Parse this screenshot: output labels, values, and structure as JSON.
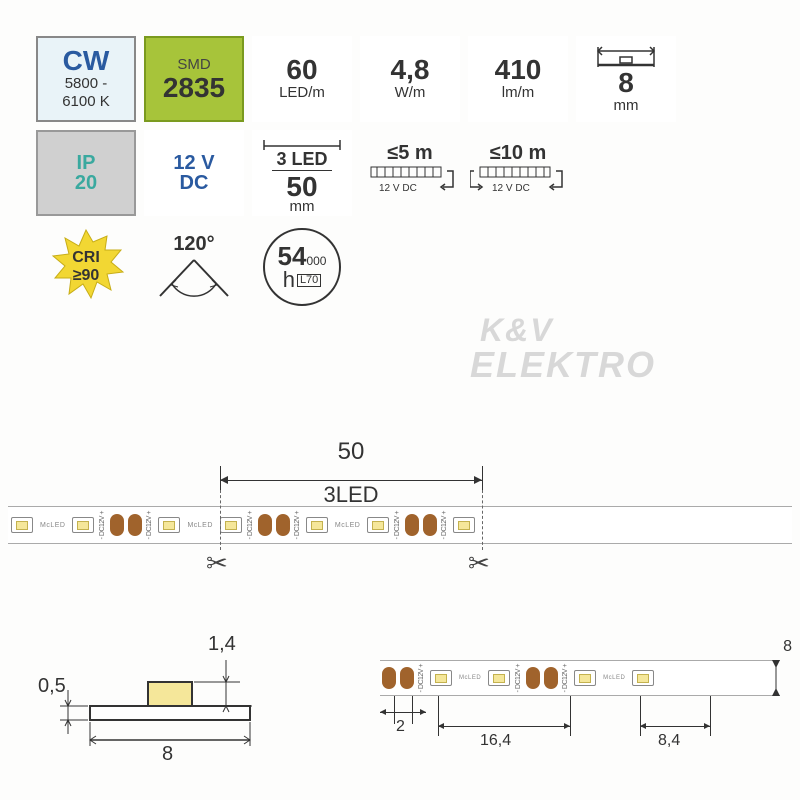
{
  "specs": {
    "cw": {
      "label": "CW",
      "range": "5800 -\n6100 K"
    },
    "smd": {
      "label": "SMD",
      "value": "2835"
    },
    "leds_per_m": {
      "value": "60",
      "unit": "LED/m"
    },
    "power": {
      "value": "4,8",
      "unit": "W/m"
    },
    "lumen": {
      "value": "410",
      "unit": "lm/m"
    },
    "width": {
      "value": "8",
      "unit": "mm"
    },
    "ip": {
      "label": "IP",
      "value": "20"
    },
    "voltage": {
      "value": "12 V",
      "type": "DC"
    },
    "segment": {
      "leds": "3 LED",
      "length": "50",
      "unit": "mm"
    },
    "max_single": {
      "len": "≤5 m",
      "v": "12 V DC"
    },
    "max_double": {
      "len": "≤10 m",
      "v": "12 V DC"
    },
    "cri": {
      "label": "CRI",
      "value": "≥90"
    },
    "beam": {
      "angle": "120°"
    },
    "life": {
      "hours_main": "54",
      "hours_suffix": "000",
      "h": "h",
      "l70": "L70"
    }
  },
  "strip_dim": {
    "segment_mm": "50",
    "segment_label": "3LED",
    "pcb_text": "McLED",
    "v_text": "DC12V +"
  },
  "cross_section": {
    "pcb_h": "0,5",
    "chip_h": "1,4",
    "width": "8"
  },
  "bottom_dims": {
    "pad_w": "2",
    "pitch": "16,4",
    "end": "8,4",
    "height": "8"
  },
  "watermark": {
    "line1": "K&V",
    "line2": "ELEKTRO"
  },
  "colors": {
    "cw_bg": "#e9f3f8",
    "smd_bg": "#a7c43a",
    "gray_bg": "#d0d0d0",
    "blue": "#2a5aa0",
    "teal": "#3aa99f",
    "cri_yellow": "#f2d733",
    "led_die": "#f5e79a",
    "pad": "#a0632c",
    "border": "#999999",
    "watermark": "#d8d8d8",
    "text": "#333333",
    "page_bg": "#fdfdfc"
  }
}
